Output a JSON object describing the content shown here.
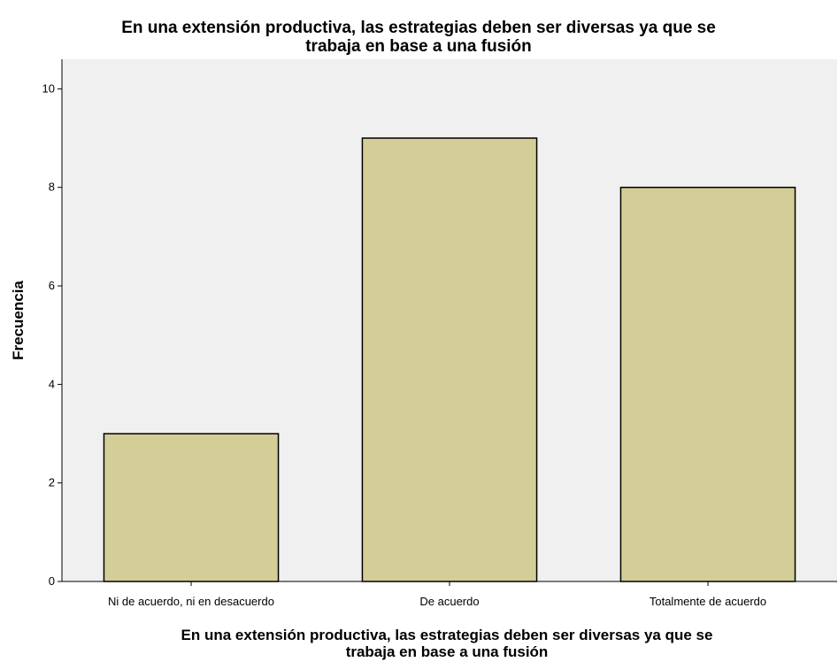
{
  "chart_data": {
    "type": "bar",
    "title": [
      "En una extensión productiva, las estrategias deben ser diversas ya que se",
      "trabaja en base a una fusión"
    ],
    "xlabel": [
      "En una extensión productiva, las estrategias deben ser diversas ya que se",
      "trabaja en base a una fusión"
    ],
    "ylabel": "Frecuencia",
    "categories": [
      "Ni de acuerdo, ni en desacuerdo",
      "De acuerdo",
      "Totalmente de acuerdo"
    ],
    "values": [
      3,
      9,
      8
    ],
    "yticks": [
      "0",
      "2",
      "4",
      "6",
      "8",
      "10"
    ],
    "ylim": [
      0,
      10.6
    ],
    "grid": false,
    "colors": {
      "bar_fill": "#d3ce97",
      "bar_stroke": "#000000",
      "plot_bg": "#f0f0f0"
    }
  }
}
